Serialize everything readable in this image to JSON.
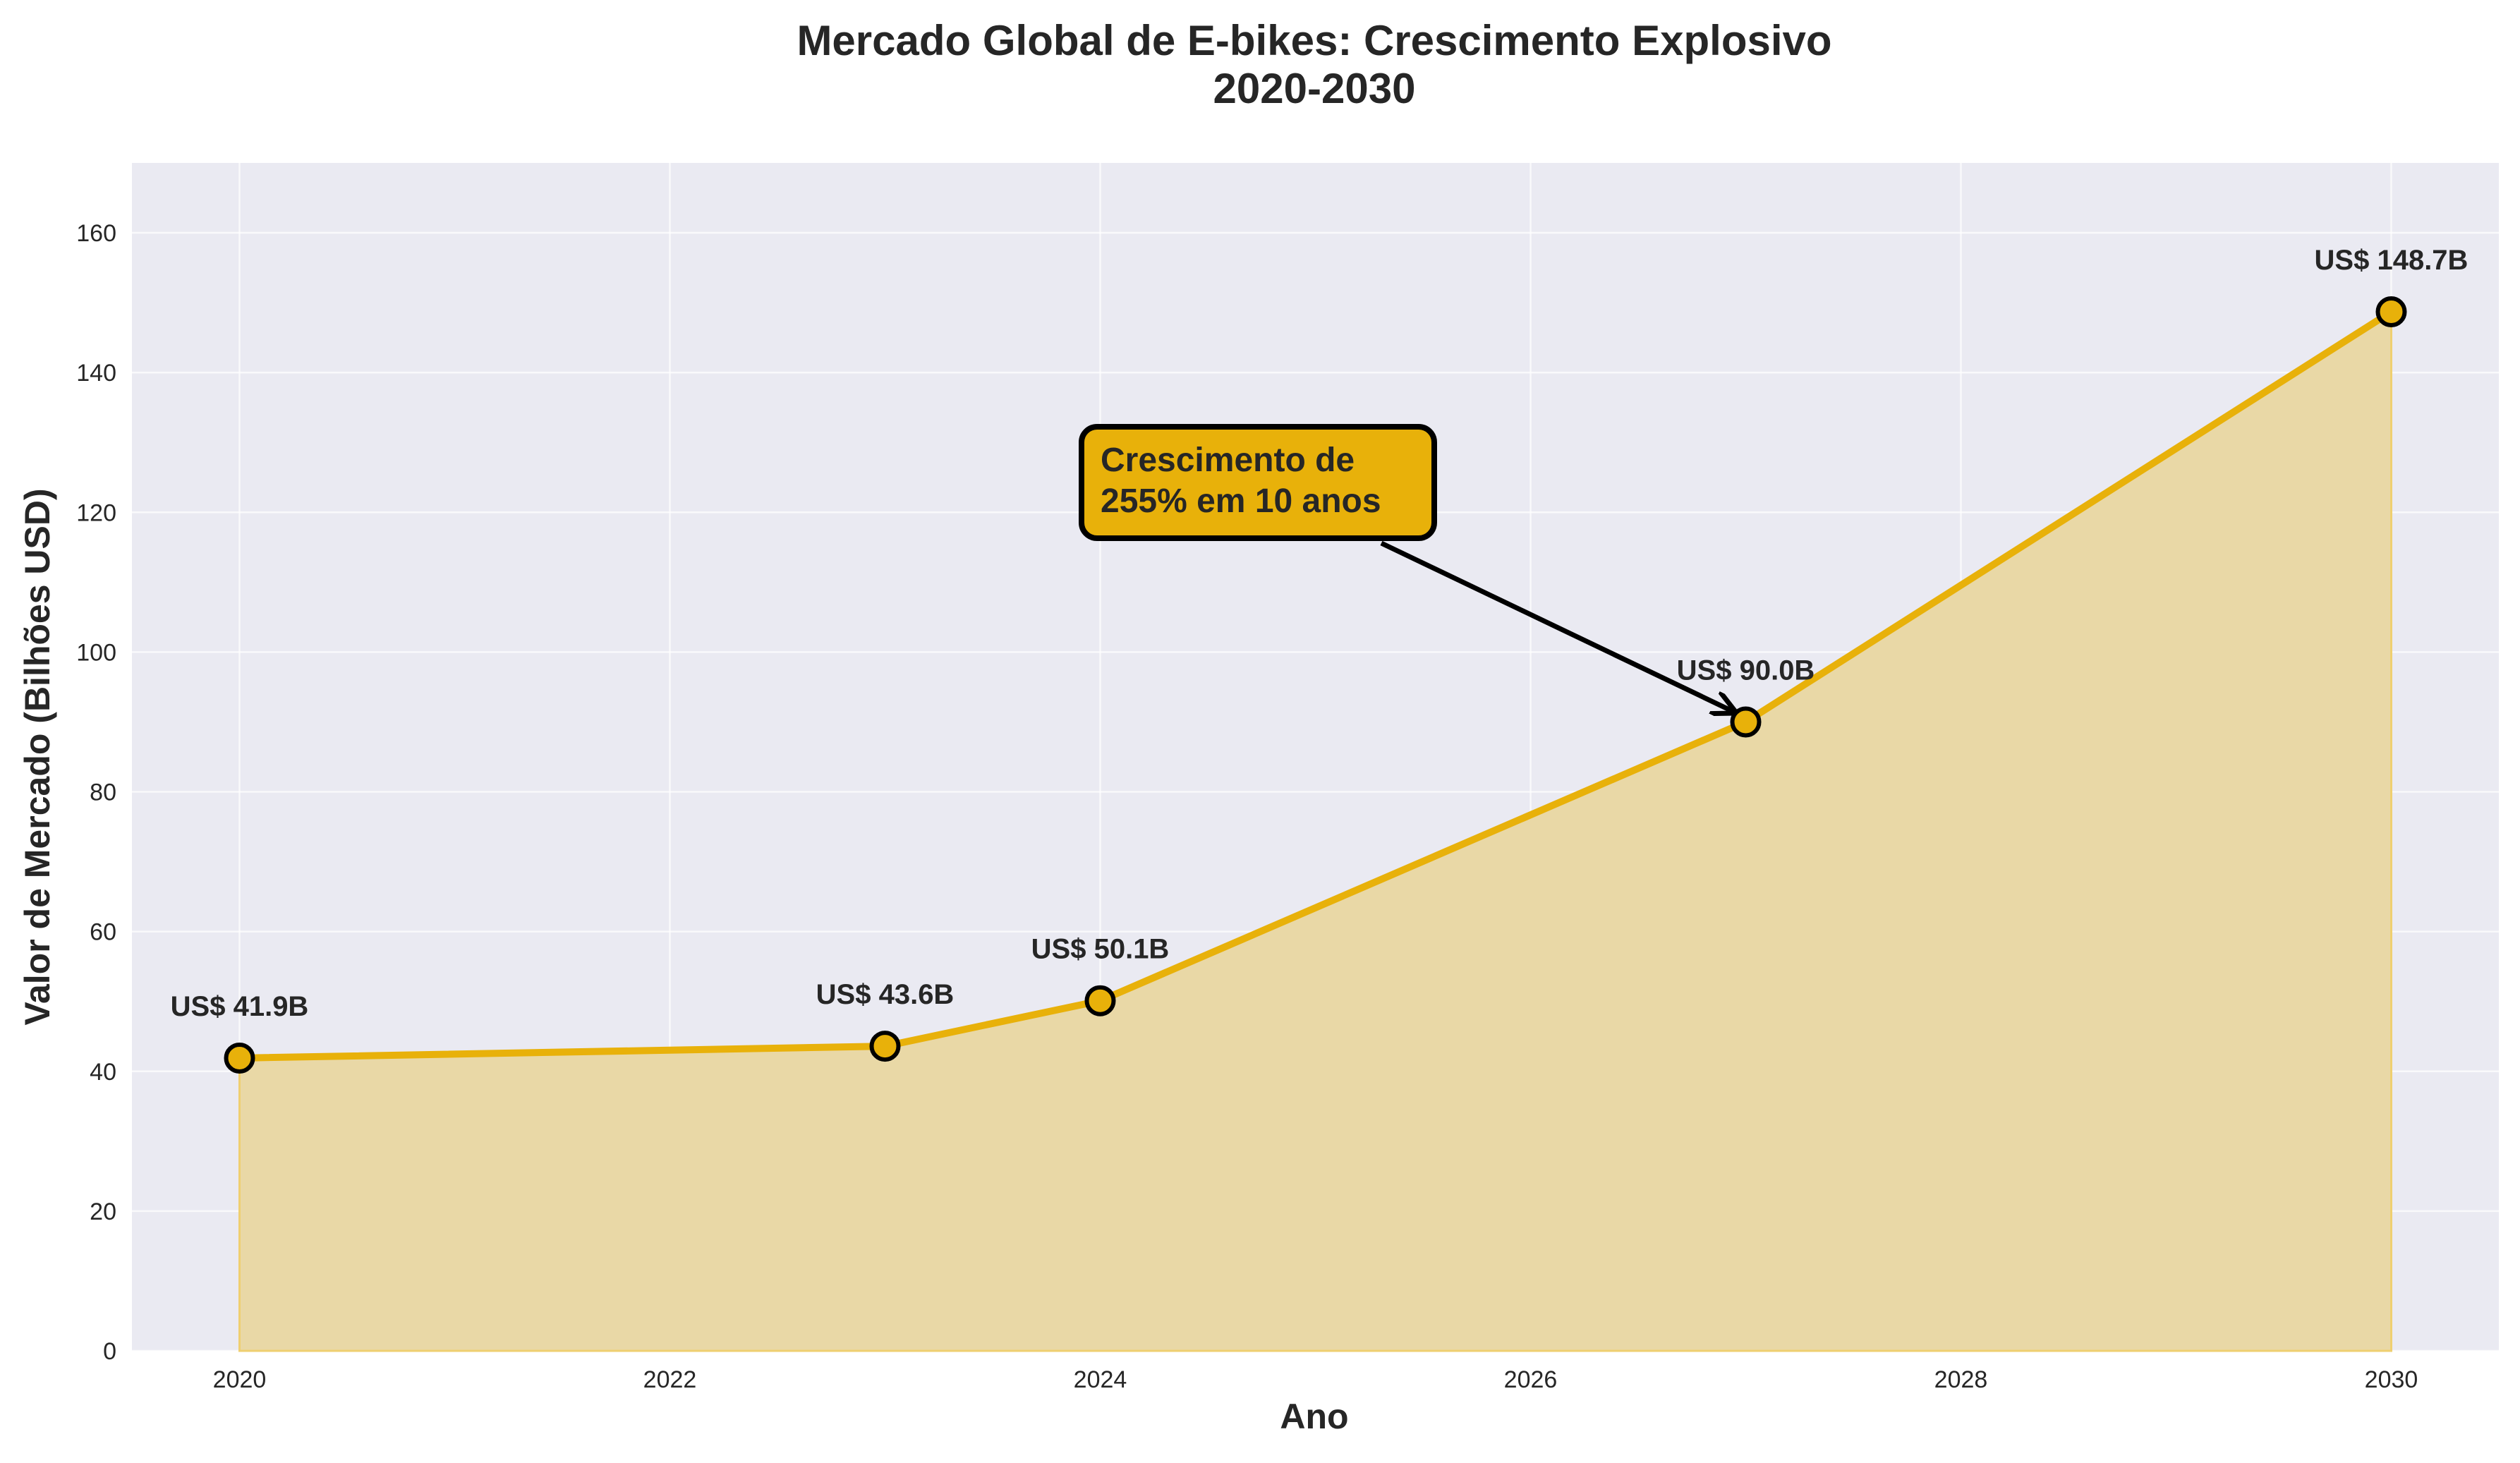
{
  "chart_data": {
    "type": "area",
    "title": "Mercado Global de E-bikes: Crescimento Explosivo",
    "subtitle": "2020-2030",
    "xlabel": "Ano",
    "ylabel": "Valor de Mercado (Bilhões USD)",
    "x": [
      2020,
      2023,
      2024,
      2027,
      2030
    ],
    "values": [
      41.9,
      43.6,
      50.1,
      90.0,
      148.7
    ],
    "data_labels": [
      "US$ 41.9B",
      "US$ 43.6B",
      "US$ 50.1B",
      "US$ 90.0B",
      "US$ 148.7B"
    ],
    "xlim": [
      2019.5,
      2030.5
    ],
    "ylim": [
      0,
      170
    ],
    "xticks": [
      "2020",
      "2022",
      "2024",
      "2026",
      "2028",
      "2030"
    ],
    "yticks": [
      "0",
      "20",
      "40",
      "60",
      "80",
      "100",
      "120",
      "140",
      "160"
    ],
    "grid": true,
    "annotation": {
      "lines": [
        "Crescimento de",
        "255% em 10 anos"
      ],
      "points_to_x": 2027,
      "points_to_y": 90.0
    },
    "colors": {
      "line": "#E8B10A",
      "fill": "#E9D8A6",
      "marker_edge": "#000000",
      "background": "#EAEAF2",
      "grid": "#FFFFFF",
      "annotation_box": "#E8B10A"
    }
  }
}
